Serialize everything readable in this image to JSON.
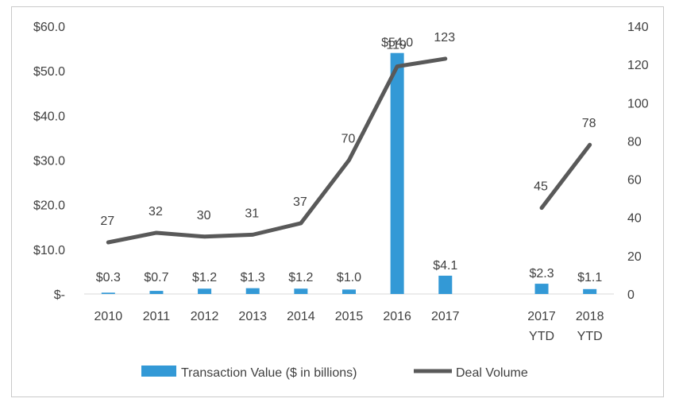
{
  "chart_data": {
    "type": "bar",
    "categories": [
      "2010",
      "2011",
      "2012",
      "2013",
      "2014",
      "2015",
      "2016",
      "2017",
      "",
      "2017\nYTD",
      "2018\nYTD"
    ],
    "category_lines": [
      [
        "2010"
      ],
      [
        "2011"
      ],
      [
        "2012"
      ],
      [
        "2013"
      ],
      [
        "2014"
      ],
      [
        "2015"
      ],
      [
        "2016"
      ],
      [
        "2017"
      ],
      [],
      [
        "2017",
        "YTD"
      ],
      [
        "2018",
        "YTD"
      ]
    ],
    "series": [
      {
        "name": "Transaction Value ($ in billions)",
        "type": "bar",
        "axis": "left",
        "color": "#3399d6",
        "values": [
          0.3,
          0.7,
          1.2,
          1.3,
          1.2,
          1.0,
          54.0,
          4.1,
          null,
          2.3,
          1.1
        ],
        "labels": [
          "$0.3",
          "$0.7",
          "$1.2",
          "$1.3",
          "$1.2",
          "$1.0",
          "$54.0",
          "$4.1",
          "",
          "$2.3",
          "$1.1"
        ]
      },
      {
        "name": "Deal Volume",
        "type": "line",
        "axis": "right",
        "color": "#595959",
        "values": [
          27,
          32,
          30,
          31,
          37,
          70,
          119,
          123,
          null,
          45,
          78
        ],
        "labels": [
          "27",
          "32",
          "30",
          "31",
          "37",
          "70",
          "119",
          "123",
          "",
          "45",
          "78"
        ]
      }
    ],
    "y_left": {
      "ylim": [
        0,
        60
      ],
      "ticks": [
        0,
        10,
        20,
        30,
        40,
        50,
        60
      ],
      "tick_labels": [
        "$-",
        "$10.0",
        "$20.0",
        "$30.0",
        "$40.0",
        "$50.0",
        "$60.0"
      ]
    },
    "y_right": {
      "ylim": [
        0,
        140
      ],
      "ticks": [
        0,
        20,
        40,
        60,
        80,
        100,
        120,
        140
      ],
      "tick_labels": [
        "0",
        "20",
        "40",
        "60",
        "80",
        "100",
        "120",
        "140"
      ]
    },
    "grid": false,
    "legend": "bottom",
    "title": "",
    "xlabel": "",
    "ylabel": ""
  }
}
